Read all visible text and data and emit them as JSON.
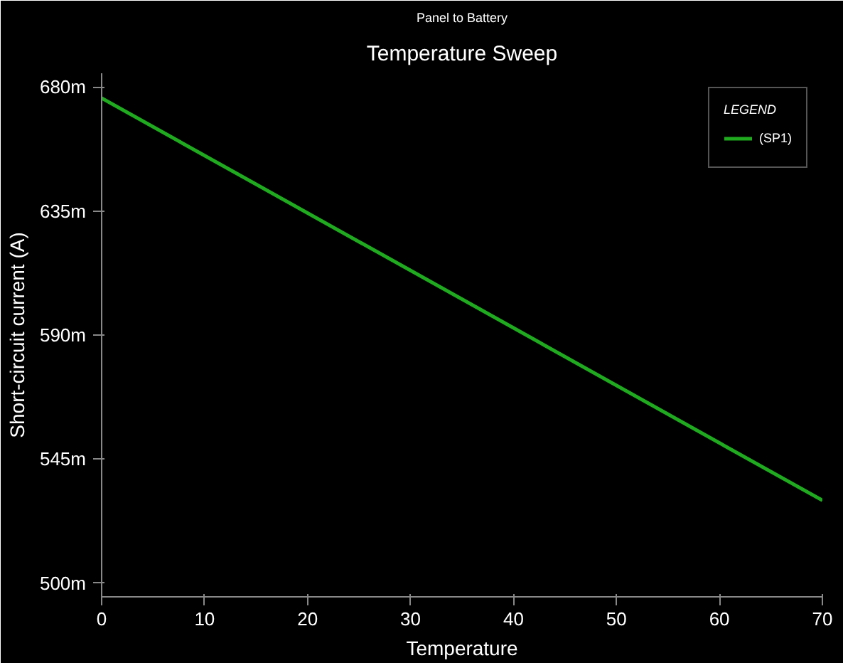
{
  "chart_data": {
    "type": "line",
    "title": "Temperature Sweep",
    "subtitle": "Panel to Battery",
    "xlabel": "Temperature",
    "ylabel": "Short-circuit current (A)",
    "x": [
      0,
      70
    ],
    "series": [
      {
        "name": "(SP1)",
        "color": "#1faa1f",
        "values": [
          676,
          530
        ]
      }
    ],
    "xlim": [
      0,
      70
    ],
    "xticks": [
      0,
      10,
      20,
      30,
      40,
      50,
      60,
      70
    ],
    "ylim": [
      495,
      685
    ],
    "yticks": [
      {
        "value": 500,
        "label": "500m"
      },
      {
        "value": 545,
        "label": "545m"
      },
      {
        "value": 590,
        "label": "590m"
      },
      {
        "value": 635,
        "label": "635m"
      },
      {
        "value": 680,
        "label": "680m"
      }
    ],
    "legend": "top right",
    "legend_title": "LEGEND",
    "grid": false,
    "marker": "none",
    "line_style": "solid"
  }
}
